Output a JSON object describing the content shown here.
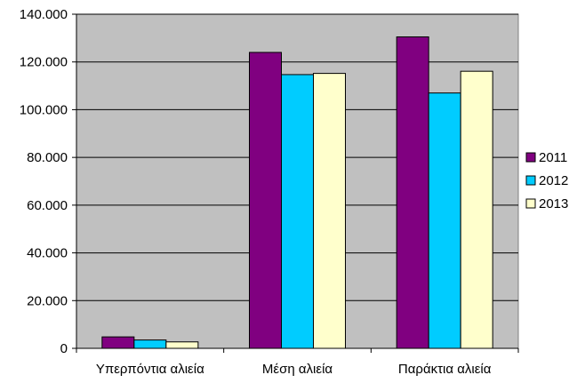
{
  "chart_data": {
    "type": "bar",
    "title": "",
    "xlabel": "",
    "ylabel": "",
    "categories": [
      "Υπερπόντια αλιεία",
      "Μέση αλιεία",
      "Παράκτια αλιεία"
    ],
    "series": [
      {
        "name": "2011",
        "color": "#800080",
        "values": [
          4800,
          124000,
          130500
        ]
      },
      {
        "name": "2012",
        "color": "#00ccff",
        "values": [
          3500,
          114700,
          107000
        ]
      },
      {
        "name": "2013",
        "color": "#ffffcc",
        "values": [
          2700,
          115200,
          116100
        ]
      }
    ],
    "ylim": [
      0,
      140000
    ],
    "yticks": [
      0,
      20000,
      40000,
      60000,
      80000,
      100000,
      120000,
      140000
    ],
    "ytick_labels": [
      "0",
      "20.000",
      "40.000",
      "60.000",
      "80.000",
      "100.000",
      "120.000",
      "140.000"
    ],
    "grid": true,
    "plot_background": "#c0c0c0",
    "legend_position": "right"
  }
}
